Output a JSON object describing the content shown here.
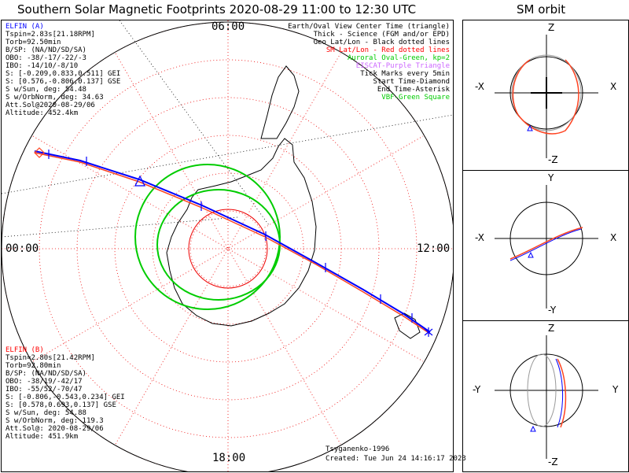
{
  "header": {
    "title": "Southern Solar Magnetic Footprints 2020-08-29 11:00 to 12:30 UTC",
    "orbit_title": "SM orbit"
  },
  "clock_labels": {
    "top": "06:00",
    "left": "00:00",
    "right": "12:00",
    "bottom": "18:00"
  },
  "legend": [
    {
      "text": "Earth/Oval View Center Time (triangle)",
      "color": "#000000"
    },
    {
      "text": "Thick - Science (FGM and/or EPD)",
      "color": "#000000"
    },
    {
      "text": "Geo Lat/Lon - Black dotted lines",
      "color": "#000000"
    },
    {
      "text": "SM Lat/Lon - Red dotted lines",
      "color": "#ff0000"
    },
    {
      "text": "Auroral Oval-Green, kp=2",
      "color": "#00cc00"
    },
    {
      "text": "EISCAT-Purple Triangle",
      "color": "#cc66ff"
    },
    {
      "text": "Tick Marks every 5min",
      "color": "#000000"
    },
    {
      "text": "Start Time-Diamond",
      "color": "#000000"
    },
    {
      "text": "End Time-Asterisk",
      "color": "#000000"
    },
    {
      "text": "VBF-Green Square",
      "color": "#00cc00"
    }
  ],
  "probe_a": {
    "name": "ELFIN (A)",
    "color": "#0000ff",
    "lines": [
      "Tspin=2.83s[21.18RPM]",
      "Torb=92.50min",
      "B/SP: (NA/ND/SD/SA)",
      "OBO: -38/-17/-22/-3",
      "IBO: -14/10/-8/10",
      "S: [-0.209,0.833,0.511] GEI",
      "S: [0.576,-0.806,0.137] GSE",
      "S w/Sun, deg: 54.48",
      "S w/OrbNorm, deg: 34.63",
      "Att.Sol@2020-08-29/06",
      "Altitude: 452.4km"
    ]
  },
  "probe_b": {
    "name": "ELFIN (B)",
    "color": "#ff0000",
    "lines": [
      "Tspin=2.80s[21.42RPM]",
      "Torb=92.80min",
      "B/SP: (NA/ND/SD/SA)",
      "OBO: -38/19/-42/17",
      "IBO: -55/52/-70/47",
      "S: [-0.806,-0.543,0.234] GEI",
      "S: [0.578,0.693,0.137] GSE",
      "S w/Sun, deg: 54.88",
      "S w/OrbNorm, deg: 119.3",
      "Att.Sol@: 2020-08-29/06",
      "Altitude: 451.9km"
    ]
  },
  "footer": {
    "model": "Tsyganenko-1996",
    "created": "Created: Tue Jun 24 14:16:17 2023"
  },
  "orbit_panels": [
    {
      "up": "Z",
      "down": "-Z",
      "left": "-X",
      "right": "X"
    },
    {
      "up": "Y",
      "down": "-Y",
      "left": "-X",
      "right": "X"
    },
    {
      "up": "Z",
      "down": "-Z",
      "left": "-Y",
      "right": "Y"
    }
  ],
  "colors": {
    "geo_grid": "#000000",
    "sm_grid": "#ff0000",
    "auroral_oval": "#00cc00",
    "track_a": "#0000ff",
    "track_b": "#ff4422",
    "orbit_gray": "#999999"
  }
}
